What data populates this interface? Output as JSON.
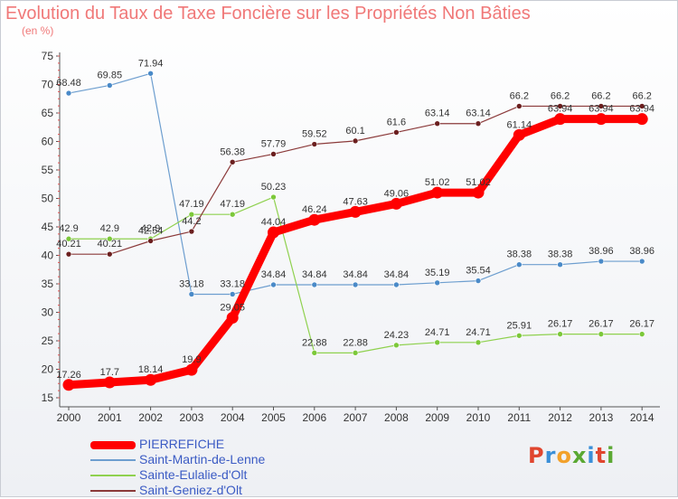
{
  "title": "Evolution du Taux de Taxe Foncière sur les Propriétés Non Bâties",
  "unit_label": "(en %)",
  "logo": {
    "text": "Proxiti",
    "colors": [
      "#e0462f",
      "#3a8fd8",
      "#f2a12b",
      "#5aa832",
      "#3a8fd8",
      "#e0462f",
      "#5aa832"
    ]
  },
  "chart_data": {
    "type": "line",
    "title": "Evolution du Taux de Taxe Foncière sur les Propriétés Non Bâties",
    "ylabel": "(en %)",
    "xlabel": "",
    "categories": [
      "2000",
      "2001",
      "2002",
      "2003",
      "2004",
      "2005",
      "2006",
      "2007",
      "2008",
      "2009",
      "2010",
      "2011",
      "2012",
      "2013",
      "2014"
    ],
    "ylim": [
      15,
      75
    ],
    "yticks": [
      15,
      20,
      25,
      30,
      35,
      40,
      45,
      50,
      55,
      60,
      65,
      70,
      75
    ],
    "grid": false,
    "legend_position": "bottom-left",
    "series": [
      {
        "name": "PIERREFICHE",
        "color": "#ff0000",
        "width": 9,
        "marker_color": "#ff0000",
        "values": [
          17.26,
          17.7,
          18.14,
          19.9,
          29.05,
          44.04,
          46.24,
          47.63,
          49.06,
          51.02,
          51.02,
          61.14,
          63.94,
          63.94,
          63.94
        ],
        "labels": [
          "17.26",
          "17.7",
          "18.14",
          "19.9",
          "29.05",
          "44.04",
          "46.24",
          "47.63",
          "49.06",
          "51.02",
          "51.02",
          "61.14",
          "63.94",
          "63.94",
          "63.94"
        ]
      },
      {
        "name": "Saint-Martin-de-Lenne",
        "color": "#6d9ecf",
        "width": 1.2,
        "marker_color": "#4a8ac8",
        "values": [
          68.48,
          69.85,
          71.94,
          33.18,
          33.18,
          34.84,
          34.84,
          34.84,
          34.84,
          35.19,
          35.54,
          38.38,
          38.38,
          38.96,
          38.96
        ],
        "labels": [
          "68.48",
          "69.85",
          "71.94",
          "33.18",
          "33.18",
          "34.84",
          "34.84",
          "34.84",
          "34.84",
          "35.19",
          "35.54",
          "38.38",
          "38.38",
          "38.96",
          "38.96"
        ]
      },
      {
        "name": "Sainte-Eulalie-d'Olt",
        "color": "#8fd14f",
        "width": 1.2,
        "marker_color": "#7cc83a",
        "values": [
          42.9,
          42.9,
          42.9,
          47.19,
          47.19,
          50.23,
          22.88,
          22.88,
          24.23,
          24.71,
          24.71,
          25.91,
          26.17,
          26.17,
          26.17
        ],
        "labels": [
          "42.9",
          "42.9",
          "42.9",
          "47.19",
          "47.19",
          "50.23",
          "22.88",
          "22.88",
          "24.23",
          "24.71",
          "24.71",
          "25.91",
          "26.17",
          "26.17",
          "26.17"
        ]
      },
      {
        "name": "Saint-Geniez-d'Olt",
        "color": "#8b3a3a",
        "width": 1.2,
        "marker_color": "#6b1f1f",
        "values": [
          40.21,
          40.21,
          42.54,
          44.2,
          56.38,
          57.79,
          59.52,
          60.1,
          61.6,
          63.14,
          63.14,
          66.2,
          66.2,
          66.2,
          66.2
        ],
        "labels": [
          "40.21",
          "40.21",
          "42.54",
          "44.2",
          "56.38",
          "57.79",
          "59.52",
          "60.1",
          "61.6",
          "63.14",
          "63.14",
          "66.2",
          "66.2",
          "66.2",
          "66.2"
        ]
      }
    ]
  }
}
